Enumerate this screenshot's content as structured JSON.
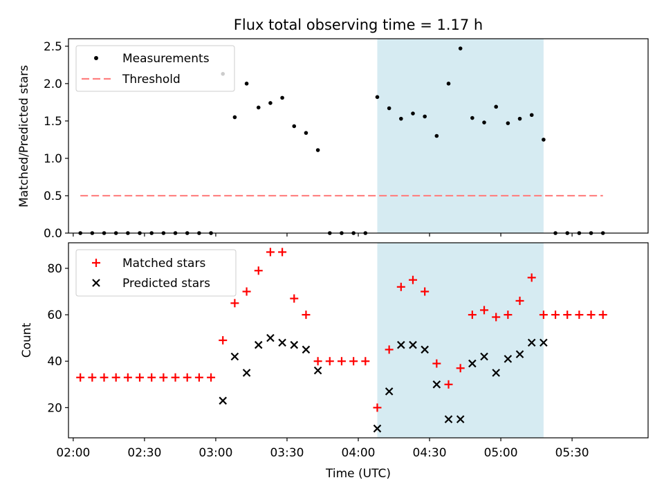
{
  "chart_data": [
    {
      "type": "scatter",
      "title": "Flux total observing time = 1.17 h",
      "ylabel": "Matched/Predicted stars",
      "xlim": [
        "01:58",
        "06:02"
      ],
      "ylim": [
        0,
        2.6
      ],
      "yticks": [
        0.0,
        0.5,
        1.0,
        1.5,
        2.0,
        2.5
      ],
      "ytick_labels": [
        "0.0",
        "0.5",
        "1.0",
        "1.5",
        "2.0",
        "2.5"
      ],
      "highlight_span": [
        "04:08",
        "05:18"
      ],
      "highlight_color": "#add8e6",
      "legend_position": "upper left",
      "threshold": {
        "name": "Threshold",
        "y": 0.5,
        "x_range": [
          "02:03",
          "05:43"
        ],
        "color": "#ff7f7f"
      },
      "series": [
        {
          "name": "Measurements",
          "color": "#000000",
          "x": [
            "02:03",
            "02:08",
            "02:13",
            "02:18",
            "02:23",
            "02:28",
            "02:33",
            "02:38",
            "02:43",
            "02:48",
            "02:53",
            "02:58",
            "03:03",
            "03:08",
            "03:13",
            "03:18",
            "03:23",
            "03:28",
            "03:33",
            "03:38",
            "03:43",
            "03:48",
            "03:53",
            "03:58",
            "04:03",
            "04:08",
            "04:13",
            "04:18",
            "04:23",
            "04:28",
            "04:33",
            "04:38",
            "04:43",
            "04:48",
            "04:53",
            "04:58",
            "05:03",
            "05:08",
            "05:13",
            "05:18",
            "05:23",
            "05:28",
            "05:33",
            "05:38",
            "05:43"
          ],
          "y": [
            0,
            0,
            0,
            0,
            0,
            0,
            0,
            0,
            0,
            0,
            0,
            0,
            2.13,
            1.55,
            2.0,
            1.68,
            1.74,
            1.81,
            1.43,
            1.34,
            1.11,
            0,
            0,
            0,
            0,
            1.82,
            1.67,
            1.53,
            1.6,
            1.56,
            1.3,
            2.0,
            2.47,
            1.54,
            1.48,
            1.69,
            1.47,
            1.53,
            1.58,
            1.25,
            0,
            0,
            0,
            0,
            0
          ]
        }
      ]
    },
    {
      "type": "scatter",
      "ylabel": "Count",
      "xlabel": "Time (UTC)",
      "xlim": [
        "01:58",
        "06:02"
      ],
      "xticks": [
        "02:00",
        "02:30",
        "03:00",
        "03:30",
        "04:00",
        "04:30",
        "05:00",
        "05:30"
      ],
      "ylim": [
        7,
        91
      ],
      "yticks": [
        20,
        40,
        60,
        80
      ],
      "highlight_span": [
        "04:08",
        "05:18"
      ],
      "highlight_color": "#add8e6",
      "legend_position": "upper left",
      "series": [
        {
          "name": "Matched stars",
          "marker": "+",
          "color": "#ff0000",
          "x": [
            "02:03",
            "02:08",
            "02:13",
            "02:18",
            "02:23",
            "02:28",
            "02:33",
            "02:38",
            "02:43",
            "02:48",
            "02:53",
            "02:58",
            "03:03",
            "03:08",
            "03:13",
            "03:18",
            "03:23",
            "03:28",
            "03:33",
            "03:38",
            "03:43",
            "03:48",
            "03:53",
            "03:58",
            "04:03",
            "04:08",
            "04:13",
            "04:18",
            "04:23",
            "04:28",
            "04:33",
            "04:38",
            "04:43",
            "04:48",
            "04:53",
            "04:58",
            "05:03",
            "05:08",
            "05:13",
            "05:18",
            "05:23",
            "05:28",
            "05:33",
            "05:38",
            "05:43"
          ],
          "y": [
            33,
            33,
            33,
            33,
            33,
            33,
            33,
            33,
            33,
            33,
            33,
            33,
            49,
            65,
            70,
            79,
            87,
            87,
            67,
            60,
            40,
            40,
            40,
            40,
            40,
            20,
            45,
            72,
            75,
            70,
            39,
            30,
            37,
            60,
            62,
            59,
            60,
            66,
            76,
            60,
            60,
            60,
            60,
            60,
            60
          ]
        },
        {
          "name": "Predicted stars",
          "marker": "x",
          "color": "#000000",
          "x": [
            "03:03",
            "03:08",
            "03:13",
            "03:18",
            "03:23",
            "03:28",
            "03:33",
            "03:38",
            "03:43",
            "04:08",
            "04:13",
            "04:18",
            "04:23",
            "04:28",
            "04:33",
            "04:38",
            "04:43",
            "04:48",
            "04:53",
            "04:58",
            "05:03",
            "05:08",
            "05:13",
            "05:18"
          ],
          "y": [
            23,
            42,
            35,
            47,
            50,
            48,
            47,
            45,
            36,
            11,
            27,
            47,
            47,
            45,
            30,
            15,
            15,
            39,
            42,
            35,
            41,
            43,
            48,
            48
          ]
        }
      ]
    }
  ]
}
